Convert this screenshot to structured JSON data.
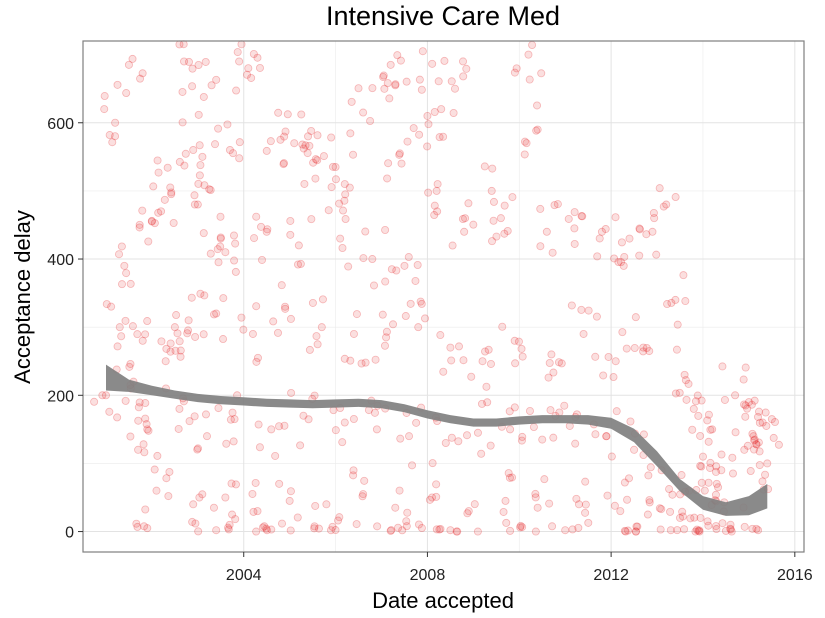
{
  "chart_data": {
    "type": "scatter",
    "title": "Intensive Care Med",
    "xlabel": "Date accepted",
    "ylabel": "Acceptance delay",
    "x_unit": "year",
    "xlim": [
      2000.5,
      2016.2
    ],
    "ylim": [
      -30,
      720
    ],
    "x_ticks": [
      2004,
      2008,
      2012,
      2016
    ],
    "y_ticks": [
      0,
      200,
      400,
      600
    ],
    "grid": true,
    "legend": "none",
    "colors": {
      "points": "#e31a1c",
      "smooth_band": "#808080",
      "panel_border": "#7f7f7f",
      "grid": "#ebebeb"
    },
    "series": [
      {
        "type": "scatter",
        "points_are_estimated": true,
        "points": [
          [
            2001.0,
            200
          ],
          [
            2001.2,
            600
          ],
          [
            2001.3,
            300
          ],
          [
            2001.5,
            685
          ],
          [
            2001.6,
            220
          ],
          [
            2001.7,
            120
          ],
          [
            2002.2,
            470
          ],
          [
            2002.4,
            505
          ],
          [
            2002.6,
            715
          ],
          [
            2002.7,
            690
          ],
          [
            2002.9,
            560
          ],
          [
            2003.1,
            550
          ],
          [
            2003.3,
            655
          ],
          [
            2003.5,
            430
          ],
          [
            2003.7,
            560
          ],
          [
            2003.9,
            690
          ],
          [
            2004.1,
            680
          ],
          [
            2004.8,
            575
          ],
          [
            2005.1,
            570
          ],
          [
            2005.4,
            580
          ],
          [
            2005.6,
            545
          ],
          [
            2006.0,
            535
          ],
          [
            2006.2,
            510
          ],
          [
            2006.6,
            615
          ],
          [
            2007.2,
            685
          ],
          [
            2007.3,
            655
          ],
          [
            2007.4,
            555
          ],
          [
            2007.9,
            705
          ],
          [
            2008.0,
            610
          ],
          [
            2008.2,
            500
          ],
          [
            2008.3,
            620
          ],
          [
            2008.6,
            650
          ],
          [
            2009.4,
            500
          ],
          [
            2010.2,
            700
          ],
          [
            2010.4,
            590
          ],
          [
            2013.2,
            480
          ],
          [
            2001.4,
            390
          ],
          [
            2002.0,
            455
          ],
          [
            2002.5,
            300
          ],
          [
            2003.0,
            480
          ],
          [
            2003.6,
            410
          ],
          [
            2004.5,
            440
          ],
          [
            2005.2,
            420
          ],
          [
            2006.1,
            430
          ],
          [
            2006.8,
            400
          ],
          [
            2007.5,
            390
          ],
          [
            2008.8,
            440
          ],
          [
            2009.6,
            460
          ],
          [
            2010.6,
            440
          ],
          [
            2011.2,
            445
          ],
          [
            2011.8,
            440
          ],
          [
            2012.4,
            430
          ],
          [
            2012.9,
            440
          ],
          [
            2013.4,
            340
          ],
          [
            2001.8,
            280
          ],
          [
            2002.3,
            250
          ],
          [
            2002.8,
            310
          ],
          [
            2003.4,
            320
          ],
          [
            2004.2,
            290
          ],
          [
            2004.9,
            330
          ],
          [
            2005.7,
            300
          ],
          [
            2006.4,
            290
          ],
          [
            2007.1,
            285
          ],
          [
            2007.8,
            300
          ],
          [
            2008.5,
            270
          ],
          [
            2009.2,
            250
          ],
          [
            2009.9,
            280
          ],
          [
            2010.7,
            260
          ],
          [
            2011.4,
            290
          ],
          [
            2012.1,
            250
          ],
          [
            2012.7,
            270
          ],
          [
            2013.6,
            230
          ],
          [
            2001.9,
            150
          ],
          [
            2002.6,
            180
          ],
          [
            2003.2,
            140
          ],
          [
            2003.8,
            165
          ],
          [
            2004.6,
            150
          ],
          [
            2005.3,
            170
          ],
          [
            2006.2,
            160
          ],
          [
            2006.9,
            150
          ],
          [
            2007.6,
            140
          ],
          [
            2008.4,
            130
          ],
          [
            2009.1,
            145
          ],
          [
            2009.8,
            150
          ],
          [
            2010.5,
            135
          ],
          [
            2011.1,
            155
          ],
          [
            2011.9,
            140
          ],
          [
            2012.5,
            120
          ],
          [
            2013.1,
            90
          ],
          [
            2013.7,
            60
          ],
          [
            2002.1,
            60
          ],
          [
            2002.9,
            40
          ],
          [
            2003.6,
            50
          ],
          [
            2004.3,
            30
          ],
          [
            2005.0,
            45
          ],
          [
            2005.8,
            40
          ],
          [
            2006.6,
            55
          ],
          [
            2007.3,
            35
          ],
          [
            2008.1,
            50
          ],
          [
            2008.9,
            30
          ],
          [
            2009.7,
            45
          ],
          [
            2010.4,
            35
          ],
          [
            2011.3,
            40
          ],
          [
            2012.2,
            30
          ],
          [
            2012.8,
            25
          ],
          [
            2013.5,
            20
          ],
          [
            2014.1,
            15
          ],
          [
            2014.6,
            10
          ],
          [
            2001.9,
            5
          ],
          [
            2003.4,
            2
          ],
          [
            2004.6,
            3
          ],
          [
            2005.9,
            2
          ],
          [
            2007.2,
            1
          ],
          [
            2008.5,
            2
          ],
          [
            2009.8,
            1
          ],
          [
            2011.0,
            2
          ],
          [
            2012.3,
            1
          ],
          [
            2013.3,
            2
          ],
          [
            2013.9,
            1
          ],
          [
            2014.5,
            1
          ],
          [
            2015.2,
            2
          ],
          [
            2013.8,
            180
          ],
          [
            2014.2,
            150
          ],
          [
            2014.7,
            200
          ],
          [
            2015.0,
            190
          ],
          [
            2015.3,
            160
          ],
          [
            2015.5,
            165
          ],
          [
            2014.0,
            110
          ],
          [
            2014.4,
            90
          ],
          [
            2014.9,
            120
          ],
          [
            2015.4,
            100
          ],
          [
            2015.1,
            140
          ],
          [
            2014.3,
            70
          ]
        ]
      },
      {
        "type": "smooth",
        "method": "loess",
        "points_are_estimated": true,
        "x": [
          2001.0,
          2001.5,
          2002.0,
          2002.5,
          2003.0,
          2003.5,
          2004.0,
          2004.5,
          2005.0,
          2005.5,
          2006.0,
          2006.5,
          2007.0,
          2007.5,
          2008.0,
          2008.5,
          2009.0,
          2009.5,
          2010.0,
          2010.5,
          2011.0,
          2011.5,
          2012.0,
          2012.5,
          2013.0,
          2013.5,
          2014.0,
          2014.5,
          2015.0,
          2015.4
        ],
        "y": [
          226,
          214,
          207,
          201,
          196,
          193,
          191,
          189,
          188,
          187,
          188,
          189,
          187,
          181,
          172,
          165,
          160,
          160,
          163,
          165,
          165,
          164,
          159,
          141,
          107,
          68,
          42,
          33,
          38,
          52
        ],
        "lower": [
          207,
          205,
          200,
          195,
          190,
          187,
          185,
          183,
          182,
          181,
          182,
          183,
          181,
          175,
          166,
          159,
          154,
          154,
          157,
          159,
          159,
          157,
          151,
          131,
          96,
          59,
          32,
          23,
          24,
          34
        ],
        "upper": [
          245,
          223,
          214,
          207,
          202,
          199,
          197,
          195,
          194,
          193,
          194,
          195,
          193,
          187,
          178,
          171,
          166,
          166,
          169,
          171,
          171,
          171,
          167,
          151,
          118,
          77,
          52,
          43,
          52,
          70
        ]
      }
    ]
  }
}
